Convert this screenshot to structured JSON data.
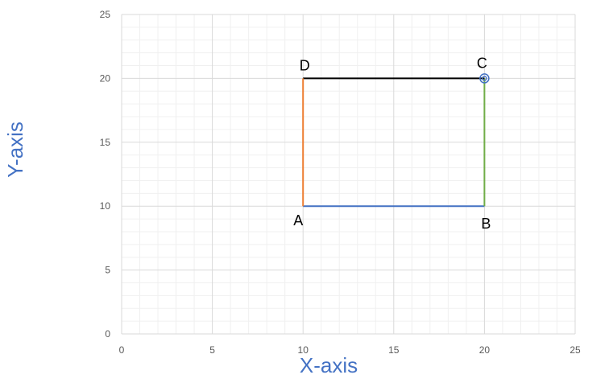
{
  "chart_data": {
    "type": "scatter",
    "title": "",
    "xlabel": "X-axis",
    "ylabel": "Y-axis",
    "xlim": [
      0,
      25
    ],
    "ylim": [
      0,
      25
    ],
    "x_ticks": [
      0,
      5,
      10,
      15,
      20,
      25
    ],
    "y_ticks": [
      0,
      5,
      10,
      15,
      20,
      25
    ],
    "grid": true,
    "minor_grid": true,
    "legend": "none",
    "points": [
      {
        "label": "A",
        "x": 10,
        "y": 10
      },
      {
        "label": "B",
        "x": 20,
        "y": 10
      },
      {
        "label": "C",
        "x": 20,
        "y": 20
      },
      {
        "label": "D",
        "x": 10,
        "y": 20
      }
    ],
    "segments": [
      {
        "from": "A",
        "to": "B",
        "color": "#4472c4"
      },
      {
        "from": "B",
        "to": "C",
        "color": "#70ad47"
      },
      {
        "from": "C",
        "to": "D",
        "color": "#000000"
      },
      {
        "from": "D",
        "to": "A",
        "color": "#ed7d31"
      }
    ],
    "marker": {
      "at": "C",
      "color": "#4472c4"
    },
    "colors": {
      "major_grid": "#d9d9d9",
      "minor_grid": "#f0f0f0",
      "tick_text": "#595959",
      "axis_title": "#4472c4"
    }
  }
}
